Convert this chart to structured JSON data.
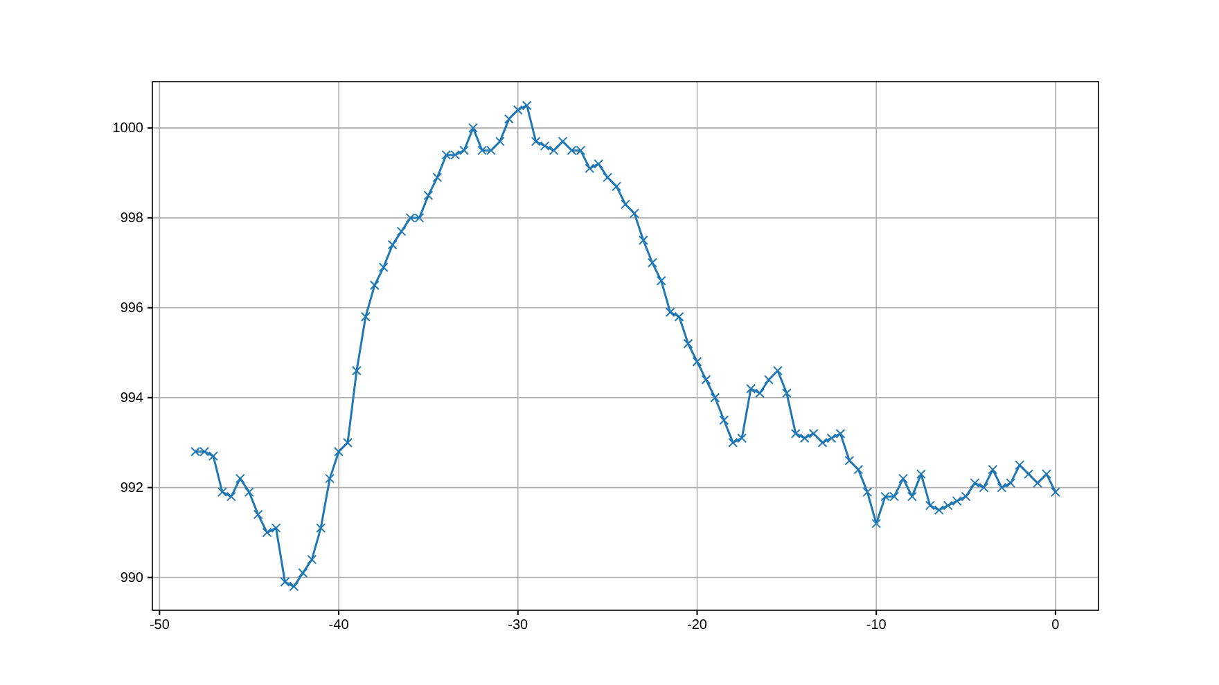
{
  "chart_data": {
    "type": "line",
    "marker": "cross",
    "grid": true,
    "x": [
      -48,
      -47.5,
      -47,
      -46.5,
      -46,
      -45.5,
      -45,
      -44.5,
      -44,
      -43.5,
      -43,
      -42.5,
      -42,
      -41.5,
      -41,
      -40.5,
      -40,
      -39.5,
      -39,
      -38.5,
      -38,
      -37.5,
      -37,
      -36.5,
      -36,
      -35.5,
      -35,
      -34.5,
      -34,
      -33.5,
      -33,
      -32.5,
      -32,
      -31.5,
      -31,
      -30.5,
      -30,
      -29.5,
      -29,
      -28.5,
      -28,
      -27.5,
      -27,
      -26.5,
      -26,
      -25.5,
      -25,
      -24.5,
      -24,
      -23.5,
      -23,
      -22.5,
      -22,
      -21.5,
      -21,
      -20.5,
      -20,
      -19.5,
      -19,
      -18.5,
      -18,
      -17.5,
      -17,
      -16.5,
      -16,
      -15.5,
      -15,
      -14.5,
      -14,
      -13.5,
      -13,
      -12.5,
      -12,
      -11.5,
      -11,
      -10.5,
      -10,
      -9.5,
      -9,
      -8.5,
      -8,
      -7.5,
      -7,
      -6.5,
      -6,
      -5.5,
      -5,
      -4.5,
      -4,
      -3.5,
      -3,
      -2.5,
      -2,
      -1.5,
      -1,
      -0.5,
      0
    ],
    "series": [
      {
        "color": "#1f77b4",
        "values": [
          992.8,
          992.8,
          992.7,
          991.9,
          991.8,
          992.2,
          991.9,
          991.4,
          991.0,
          991.1,
          989.9,
          989.8,
          990.1,
          990.4,
          991.1,
          992.2,
          992.8,
          993.0,
          994.6,
          995.8,
          996.5,
          996.9,
          997.4,
          997.7,
          998.0,
          998.0,
          998.5,
          998.9,
          999.4,
          999.4,
          999.5,
          1000.0,
          999.5,
          999.5,
          999.7,
          1000.2,
          1000.4,
          1000.5,
          999.7,
          999.6,
          999.5,
          999.7,
          999.5,
          999.5,
          999.1,
          999.2,
          998.9,
          998.7,
          998.3,
          998.1,
          997.5,
          997.0,
          996.6,
          995.9,
          995.8,
          995.2,
          994.8,
          994.4,
          994.0,
          993.5,
          993.0,
          993.1,
          994.2,
          994.1,
          994.4,
          994.6,
          994.1,
          993.2,
          993.1,
          993.2,
          993.0,
          993.1,
          993.2,
          992.6,
          992.4,
          991.9,
          991.2,
          991.8,
          991.8,
          992.2,
          991.8,
          992.3,
          991.6,
          991.5,
          991.6,
          991.7,
          991.8,
          992.1,
          992.0,
          992.4,
          992.0,
          992.1,
          992.5,
          992.3,
          992.1,
          992.3,
          991.9
        ]
      }
    ],
    "xlim": [
      -50.4,
      2.4
    ],
    "xticks": [
      -50,
      -40,
      -30,
      -20,
      -10,
      0
    ],
    "ylim": [
      989.27,
      1001.03
    ],
    "yticks": [
      990,
      992,
      994,
      996,
      998,
      1000
    ]
  }
}
